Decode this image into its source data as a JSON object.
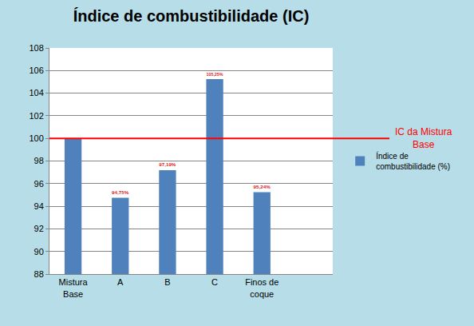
{
  "chart_data": {
    "type": "bar",
    "title": "Índice de combustibilidade (IC)",
    "categories": [
      "Mistura Base",
      "A",
      "B",
      "C",
      "Finos de coque",
      null
    ],
    "series": [
      {
        "name": "Índice de combustibilidade (%)",
        "color": "#4f81bd",
        "values": [
          100,
          94.75,
          97.19,
          105.25,
          95.24,
          null
        ],
        "value_labels": [
          null,
          "94,75%",
          "97,19%",
          "105,25%",
          "95,24%",
          null
        ]
      }
    ],
    "data_labels": true,
    "ylim": [
      88,
      108
    ],
    "yticks": [
      88,
      90,
      92,
      94,
      96,
      98,
      100,
      102,
      104,
      106,
      108
    ],
    "grid": true,
    "legend": "right",
    "reference_line": {
      "value": 100,
      "label": "IC da Mistura Base",
      "color": "#ff0000"
    }
  }
}
